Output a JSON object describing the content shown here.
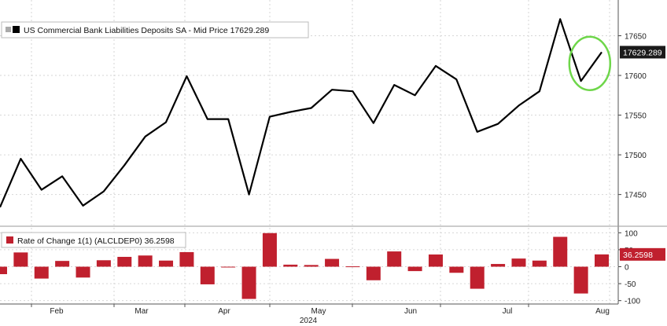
{
  "chart_data": [
    {
      "type": "line",
      "legend": "US Commercial Bank Liabilities Deposits SA - Mid Price 17629.289",
      "last_value_label": "17629.289",
      "ylim": [
        17415,
        17695
      ],
      "yticks": [
        "17450",
        "17500",
        "17550",
        "17600",
        "17650"
      ],
      "x_tick_labels": [
        "Feb",
        "Mar",
        "Apr",
        "May",
        "Jun",
        "Jul",
        "Aug"
      ],
      "x_sub_label": "2024",
      "grid": true,
      "legend_position": "top-left",
      "line_color": "#000000",
      "highlight_color": "#6ed64a",
      "series": [
        {
          "values": [
            17434,
            17495,
            17456,
            17473,
            17436,
            17454,
            17487,
            17523,
            17541,
            17599,
            17545,
            17545,
            17450,
            17548,
            17554,
            17559,
            17582,
            17580,
            17540,
            17588,
            17575,
            17612,
            17595,
            17529,
            17539,
            17562,
            17580,
            17671,
            17593,
            17629.289
          ]
        }
      ]
    },
    {
      "type": "bar",
      "legend": "Rate of Change 1(1) (ALCLDEP0) 36.2598",
      "last_value_label": "36.2598",
      "ylim": [
        -110,
        110
      ],
      "yticks": [
        "100",
        "50",
        "0",
        "-50",
        "-100"
      ],
      "bar_color": "#c0202e",
      "values": [
        -22,
        42,
        -35,
        17,
        -32,
        19,
        29,
        33,
        18,
        43,
        -52,
        0,
        -95,
        99,
        6,
        5,
        23,
        1,
        -40,
        45,
        -13,
        36,
        -18,
        -65,
        8,
        24,
        18,
        88,
        -79,
        36.2598
      ]
    }
  ]
}
